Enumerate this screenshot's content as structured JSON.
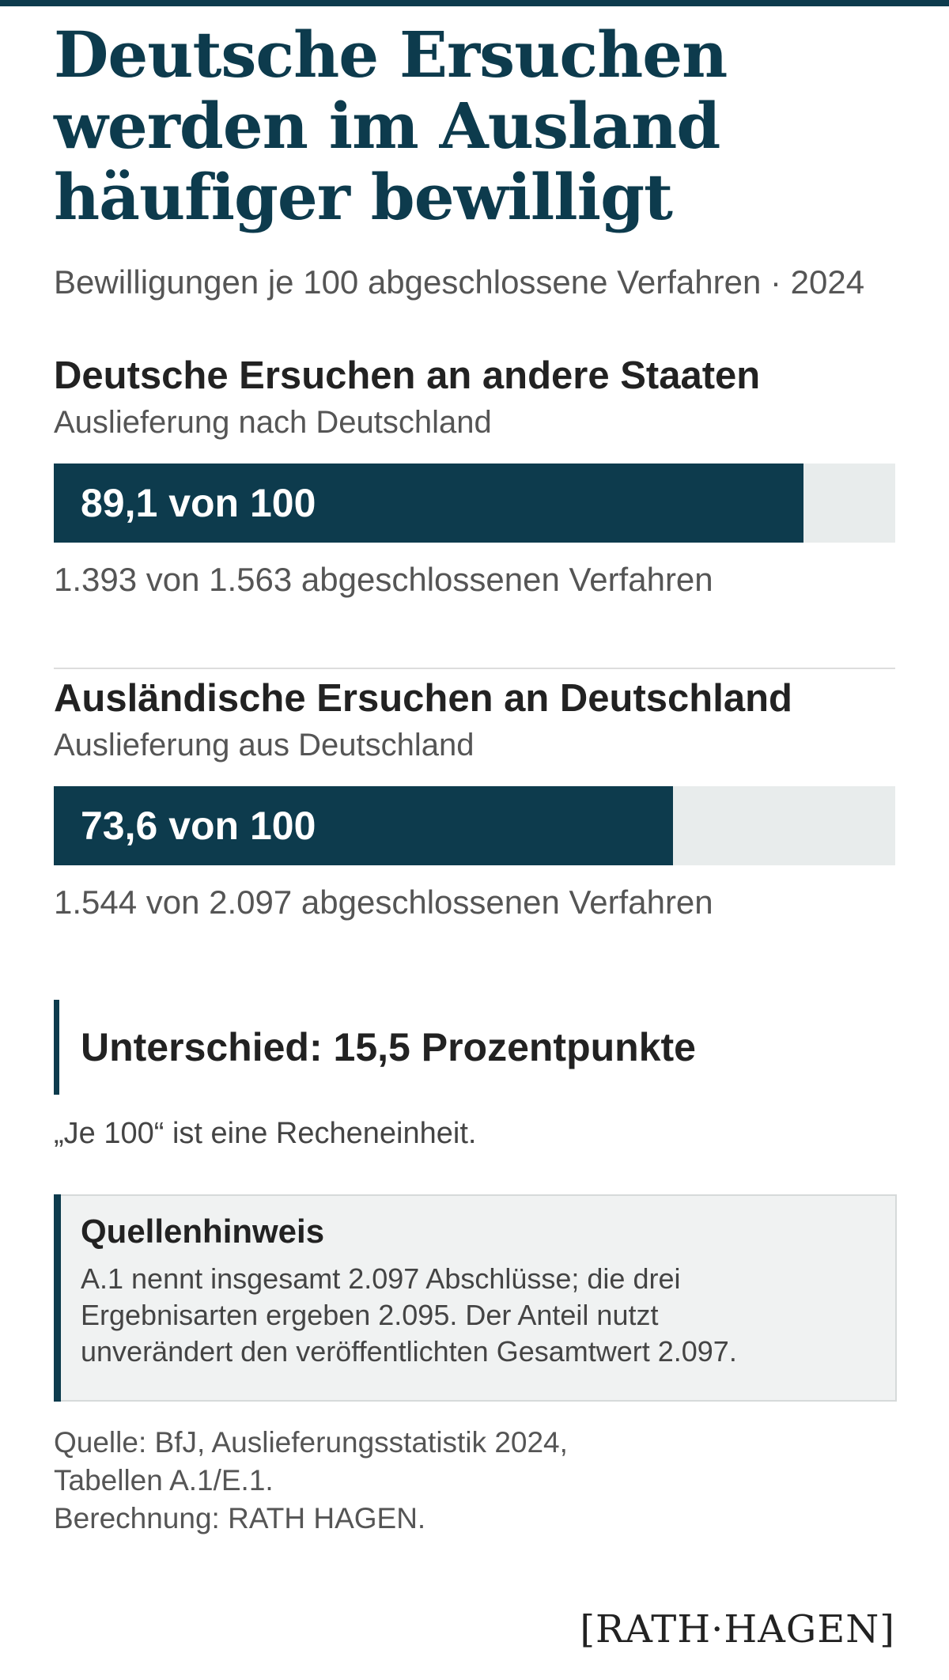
{
  "title": "Deutsche Ersuchen werden im Ausland häufiger bewilligt",
  "subtitle": "Bewilligungen je 100 abgeschlossene Verfahren · 2024",
  "colors": {
    "accent": "#0d3b4d",
    "track": "#e8ecec",
    "source_box_bg": "#f0f2f2"
  },
  "chart_data": {
    "type": "bar",
    "scale_max": 100,
    "series": [
      {
        "title": "Deutsche Ersuchen an andere Staaten",
        "subtitle": "Auslieferung nach Deutschland",
        "value": 89.1,
        "label": "89,1 von 100",
        "note": "1.393 von 1.563 abgeschlossenen Verfahren"
      },
      {
        "title": "Ausländische Ersuchen an Deutschland",
        "subtitle": "Auslieferung aus Deutschland",
        "value": 73.6,
        "label": "73,6 von 100",
        "note": "1.544 von 2.097 abgeschlossenen Verfahren"
      }
    ]
  },
  "callout": "Unterschied: 15,5 Prozentpunkte",
  "unit_note": "„Je 100“ ist eine Recheneinheit.",
  "source_box": {
    "title": "Quellenhinweis",
    "lines": [
      "A.1 nennt insgesamt 2.097 Abschlüsse; die drei",
      "Ergebnisarten ergeben 2.095. Der Anteil nutzt",
      "unverändert den veröffentlichten Gesamtwert 2.097."
    ]
  },
  "footer": {
    "lines": [
      "Quelle: BfJ, Auslieferungsstatistik 2024,",
      "Tabellen A.1/E.1.",
      "Berechnung: RATH HAGEN."
    ]
  },
  "logo": "[RATH·HAGEN]"
}
